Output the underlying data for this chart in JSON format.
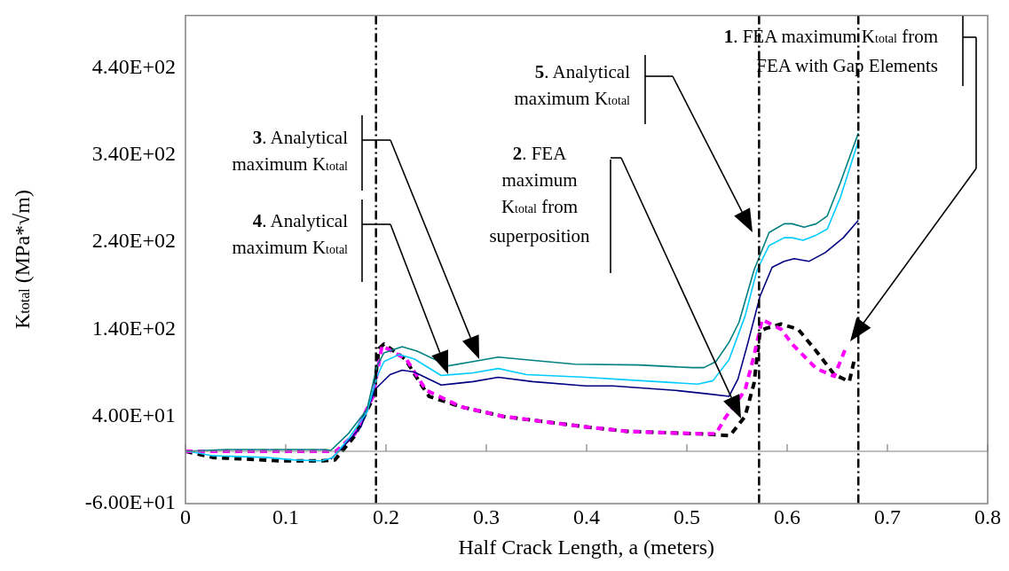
{
  "chart_data": {
    "type": "line",
    "xlabel": "Half Crack Length, a (meters)",
    "ylabel": "K$_{total}$  (MPa*√m)",
    "xlim": [
      0,
      0.8
    ],
    "xticks": [
      0,
      0.1,
      0.2,
      0.3,
      0.4,
      0.5,
      0.6,
      0.7,
      0.8
    ],
    "ylim": [
      -60,
      500
    ],
    "yticks": [
      {
        "value": -60,
        "label": "-6.00E+01"
      },
      {
        "value": 40,
        "label": "4.00E+01"
      },
      {
        "value": 140,
        "label": "1.40E+02"
      },
      {
        "value": 240,
        "label": "2.40E+02"
      },
      {
        "value": 340,
        "label": "3.40E+02"
      },
      {
        "value": 440,
        "label": "4.40E+02"
      }
    ],
    "grid": false,
    "legend": false,
    "marker": "none",
    "series": [
      {
        "color": "#008080",
        "line_style": "solid",
        "x": [
          0,
          0.04,
          0.14,
          0.145,
          0.163,
          0.181,
          0.191,
          0.198,
          0.216,
          0.231,
          0.262,
          0.287,
          0.312,
          0.34,
          0.388,
          0.452,
          0.505,
          0.517,
          0.529,
          0.542,
          0.552,
          0.567,
          0.582,
          0.597,
          0.605,
          0.617,
          0.629,
          0.64,
          0.653,
          0.671
        ],
        "values": [
          0,
          2,
          2,
          1,
          21,
          48,
          98,
          113,
          120,
          115,
          98,
          103,
          108,
          105,
          100,
          99,
          96,
          96,
          103,
          125,
          148,
          208,
          251,
          261,
          261,
          257,
          261,
          270,
          308,
          365
        ]
      },
      {
        "color": "#00ccff",
        "line_style": "solid",
        "x": [
          0,
          0.003,
          0.027,
          0.08,
          0.11,
          0.136,
          0.147,
          0.163,
          0.181,
          0.191,
          0.198,
          0.213,
          0.228,
          0.255,
          0.287,
          0.312,
          0.34,
          0.399,
          0.44,
          0.511,
          0.526,
          0.542,
          0.558,
          0.57,
          0.582,
          0.597,
          0.605,
          0.616,
          0.629,
          0.64,
          0.653,
          0.671
        ],
        "values": [
          0,
          0,
          -5,
          -7,
          -10,
          -11,
          -7,
          15,
          45,
          86,
          103,
          111,
          106,
          87,
          90,
          95,
          88,
          85,
          82,
          77,
          81,
          105,
          155,
          208,
          236,
          245,
          245,
          242,
          248,
          255,
          291,
          356
        ]
      },
      {
        "color": "#000080",
        "line_style": "solid",
        "x": [
          0.145,
          0.157,
          0.175,
          0.189,
          0.204,
          0.216,
          0.228,
          0.255,
          0.287,
          0.312,
          0.346,
          0.399,
          0.426,
          0.488,
          0.52,
          0.542,
          0.551,
          0.561,
          0.573,
          0.585,
          0.597,
          0.607,
          0.622,
          0.638,
          0.656,
          0.671
        ],
        "values": [
          -9,
          5,
          28,
          71,
          88,
          93,
          91,
          76,
          80,
          85,
          80,
          75,
          75,
          70,
          66,
          63,
          83,
          125,
          178,
          211,
          218,
          221,
          218,
          228,
          245,
          265
        ]
      },
      {
        "color": "#ff00ff",
        "line_style": "dashed",
        "x": [
          0,
          0.14,
          0.15,
          0.169,
          0.187,
          0.196,
          0.22,
          0.24,
          0.275,
          0.317,
          0.399,
          0.44,
          0.514,
          0.529,
          0.538,
          0.558,
          0.567,
          0.575,
          0.594,
          0.605,
          0.629,
          0.647,
          0.659
        ],
        "values": [
          0,
          0,
          0,
          20,
          63,
          121,
          106,
          70,
          51,
          40,
          28,
          23,
          20,
          20,
          38,
          70,
          110,
          151,
          140,
          123,
          95,
          86,
          120
        ]
      },
      {
        "color": "#000000",
        "line_style": "dashed",
        "x": [
          0,
          0.027,
          0.095,
          0.136,
          0.149,
          0.169,
          0.187,
          0.193,
          0.198,
          0.219,
          0.237,
          0.243,
          0.275,
          0.317,
          0.399,
          0.44,
          0.514,
          0.543,
          0.558,
          0.567,
          0.573,
          0.579,
          0.594,
          0.611,
          0.629,
          0.647,
          0.662,
          0.667
        ],
        "values": [
          0,
          -7,
          -11,
          -11,
          -10,
          18,
          61,
          118,
          123,
          106,
          73,
          63,
          51,
          40,
          28,
          23,
          20,
          18,
          40,
          78,
          138,
          141,
          146,
          140,
          115,
          88,
          80,
          105
        ]
      }
    ],
    "ref_lines": [
      {
        "axis": "y",
        "value": 0,
        "color": "#808080",
        "line_style": "solid"
      },
      {
        "axis": "x",
        "value": 0.19,
        "color": "#000000",
        "line_style": "dashed"
      },
      {
        "axis": "x",
        "value": 0.572,
        "color": "#000000",
        "line_style": "dashed"
      },
      {
        "axis": "x",
        "value": 0.671,
        "color": "#000000",
        "line_style": "dashed"
      }
    ],
    "annotations": [
      "1. FEA maximum K$_{total}$ from FEA with Gap Elements",
      "2. FEA maximum K$_{total}$ from superposition",
      "3. Analytical maximum K$_{total}$",
      "4. Analytical maximum K$_{total}$",
      "5. Analytical maximum K$_{total}$"
    ]
  }
}
